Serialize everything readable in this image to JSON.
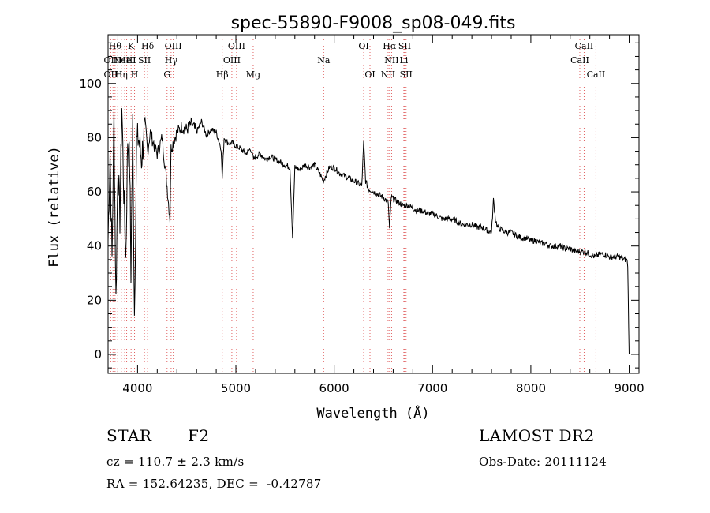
{
  "chart_data": {
    "type": "line",
    "title": "spec-55890-F9008_sp08-049.fits",
    "xlabel": "Wavelength (Å)",
    "ylabel": "Flux (relative)",
    "xlim": [
      3700,
      9100
    ],
    "ylim": [
      -7,
      118
    ],
    "x_ticks": [
      4000,
      5000,
      6000,
      7000,
      8000,
      9000
    ],
    "y_ticks": [
      0,
      20,
      40,
      60,
      80,
      100
    ],
    "grid": false,
    "series": [
      {
        "x": [
          3700,
          3720,
          3740,
          3760,
          3780,
          3800,
          3820,
          3840,
          3860,
          3880,
          3900,
          3920,
          3933,
          3950,
          3968,
          3990,
          4010,
          4040,
          4070,
          4102,
          4130,
          4160,
          4200,
          4250,
          4300,
          4330,
          4340,
          4360,
          4400,
          4450,
          4500,
          4550,
          4600,
          4650,
          4700,
          4750,
          4800,
          4850,
          4861,
          4880,
          4920,
          4960,
          5000,
          5050,
          5100,
          5150,
          5180,
          5200,
          5250,
          5300,
          5350,
          5400,
          5450,
          5500,
          5550,
          5577,
          5600,
          5650,
          5700,
          5750,
          5800,
          5850,
          5890,
          5950,
          6000,
          6050,
          6100,
          6150,
          6200,
          6250,
          6280,
          6300,
          6320,
          6350,
          6400,
          6450,
          6500,
          6550,
          6563,
          6580,
          6620,
          6660,
          6700,
          6750,
          6800,
          6850,
          6900,
          6950,
          7000,
          7050,
          7100,
          7150,
          7200,
          7250,
          7300,
          7350,
          7400,
          7450,
          7500,
          7550,
          7600,
          7620,
          7640,
          7660,
          7700,
          7750,
          7800,
          7850,
          7900,
          7950,
          8000,
          8050,
          8100,
          8150,
          8200,
          8250,
          8300,
          8350,
          8400,
          8450,
          8500,
          8550,
          8600,
          8650,
          8700,
          8750,
          8800,
          8850,
          8900,
          8950,
          8975,
          8985,
          9000
        ],
        "y": [
          42,
          75,
          35,
          88,
          20,
          70,
          50,
          92,
          60,
          35,
          80,
          70,
          30,
          85,
          15,
          78,
          80,
          72,
          82,
          75,
          82,
          78,
          74,
          80,
          62,
          50,
          76,
          78,
          82,
          84,
          83,
          85,
          82,
          86,
          81,
          83,
          82,
          76,
          65,
          80,
          78,
          78,
          77,
          76,
          74,
          76,
          72,
          73,
          74,
          72,
          73,
          72,
          71,
          70,
          69,
          43,
          69,
          68,
          70,
          69,
          70,
          67,
          64,
          69,
          69,
          67,
          66,
          65,
          64,
          63,
          62,
          78,
          64,
          61,
          60,
          59,
          58,
          56,
          46,
          58,
          57,
          56,
          55,
          55,
          54,
          53,
          53,
          52,
          52,
          51,
          50,
          50,
          50,
          49,
          48,
          48,
          48,
          47,
          47,
          46,
          45,
          57,
          50,
          47,
          46,
          45,
          45,
          44,
          43,
          43,
          42,
          42,
          41,
          41,
          40,
          40,
          40,
          39,
          39,
          38,
          38,
          38,
          37,
          36,
          37,
          37,
          36,
          36,
          36,
          35,
          35,
          33,
          0
        ]
      }
    ],
    "lines": [
      {
        "x": 3727,
        "labels": [
          "OII"
        ]
      },
      {
        "x": 3750,
        "labels": [
          "OII"
        ]
      },
      {
        "x": 3771,
        "labels": [
          "Hθ"
        ]
      },
      {
        "x": 3798,
        "labels": [
          "Hη"
        ]
      },
      {
        "x": 3835,
        "labels": [
          "Hη"
        ]
      },
      {
        "x": 3869,
        "labels": [
          "NeIII"
        ]
      },
      {
        "x": 3889,
        "labels": [
          "HeI"
        ]
      },
      {
        "x": 3934,
        "labels": [
          "K"
        ]
      },
      {
        "x": 3969,
        "labels": [
          "H"
        ]
      },
      {
        "x": 4070,
        "labels": [
          "SII"
        ]
      },
      {
        "x": 4102,
        "labels": [
          "Hδ"
        ]
      },
      {
        "x": 4300,
        "labels": [
          "G"
        ]
      },
      {
        "x": 4341,
        "labels": [
          "Hγ"
        ]
      },
      {
        "x": 4363,
        "labels": [
          "OIII"
        ]
      },
      {
        "x": 4861,
        "labels": [
          "Hβ"
        ]
      },
      {
        "x": 4959,
        "labels": [
          "OIII"
        ]
      },
      {
        "x": 5007,
        "labels": [
          "OIII"
        ]
      },
      {
        "x": 5176,
        "labels": [
          "Mg"
        ]
      },
      {
        "x": 5893,
        "labels": [
          "Na"
        ]
      },
      {
        "x": 6300,
        "labels": [
          "OI"
        ]
      },
      {
        "x": 6364,
        "labels": [
          "OI"
        ]
      },
      {
        "x": 6548,
        "labels": [
          "NII"
        ]
      },
      {
        "x": 6563,
        "labels": [
          "Hα"
        ]
      },
      {
        "x": 6584,
        "labels": [
          "NII"
        ]
      },
      {
        "x": 6708,
        "labels": [
          "Li"
        ]
      },
      {
        "x": 6717,
        "labels": [
          "SII"
        ]
      },
      {
        "x": 6731,
        "labels": [
          "SII"
        ]
      },
      {
        "x": 8498,
        "labels": [
          "CaII"
        ]
      },
      {
        "x": 8542,
        "labels": [
          "CaII"
        ]
      },
      {
        "x": 8662,
        "labels": [
          "CaII"
        ]
      }
    ],
    "line_labels": [
      {
        "text": "Hθ",
        "x": 3771,
        "row": 0
      },
      {
        "text": "K",
        "x": 3934,
        "row": 0
      },
      {
        "text": "Hδ",
        "x": 4102,
        "row": 0
      },
      {
        "text": "OIII",
        "x": 4363,
        "row": 0
      },
      {
        "text": "OIII",
        "x": 5007,
        "row": 0
      },
      {
        "text": "OI",
        "x": 6300,
        "row": 0
      },
      {
        "text": "Hα",
        "x": 6563,
        "row": 0
      },
      {
        "text": "SII",
        "x": 6717,
        "row": 0
      },
      {
        "text": "CaII",
        "x": 8542,
        "row": 0
      },
      {
        "text": "OII",
        "x": 3727,
        "row": 1
      },
      {
        "text": "NeIII",
        "x": 3869,
        "row": 1
      },
      {
        "text": "HeI",
        "x": 3889,
        "row": 1
      },
      {
        "text": "SII",
        "x": 4070,
        "row": 1
      },
      {
        "text": "Hγ",
        "x": 4341,
        "row": 1
      },
      {
        "text": "OIII",
        "x": 4959,
        "row": 1
      },
      {
        "text": "NII",
        "x": 6584,
        "row": 1
      },
      {
        "text": "Li",
        "x": 6708,
        "row": 1
      },
      {
        "text": "CaII",
        "x": 8498,
        "row": 1
      },
      {
        "text": "OII",
        "x": 3727,
        "row": 2
      },
      {
        "text": "Hη",
        "x": 3835,
        "row": 2
      },
      {
        "text": "H",
        "x": 3969,
        "row": 2
      },
      {
        "text": "G",
        "x": 4300,
        "row": 2
      },
      {
        "text": "Hβ",
        "x": 4861,
        "row": 2
      },
      {
        "text": "Mg",
        "x": 5176,
        "row": 2
      },
      {
        "text": "Na",
        "x": 5893,
        "row": 1
      },
      {
        "text": "OI",
        "x": 6364,
        "row": 2
      },
      {
        "text": "NII",
        "x": 6548,
        "row": 2
      },
      {
        "text": "SII",
        "x": 6731,
        "row": 2
      },
      {
        "text": "CaII",
        "x": 8662,
        "row": 2
      }
    ],
    "colors": {
      "spectrum": "#000000",
      "line_markers": "#e06060",
      "axes": "#000000"
    }
  },
  "info": {
    "object_class": "STAR",
    "subclass": "F2",
    "survey": "LAMOST DR2",
    "redshift": "cz = 110.7 ± 2.3 km/s",
    "obs_date": "Obs-Date: 20111124",
    "coords": "RA = 152.64235, DEC =  -0.42787"
  }
}
